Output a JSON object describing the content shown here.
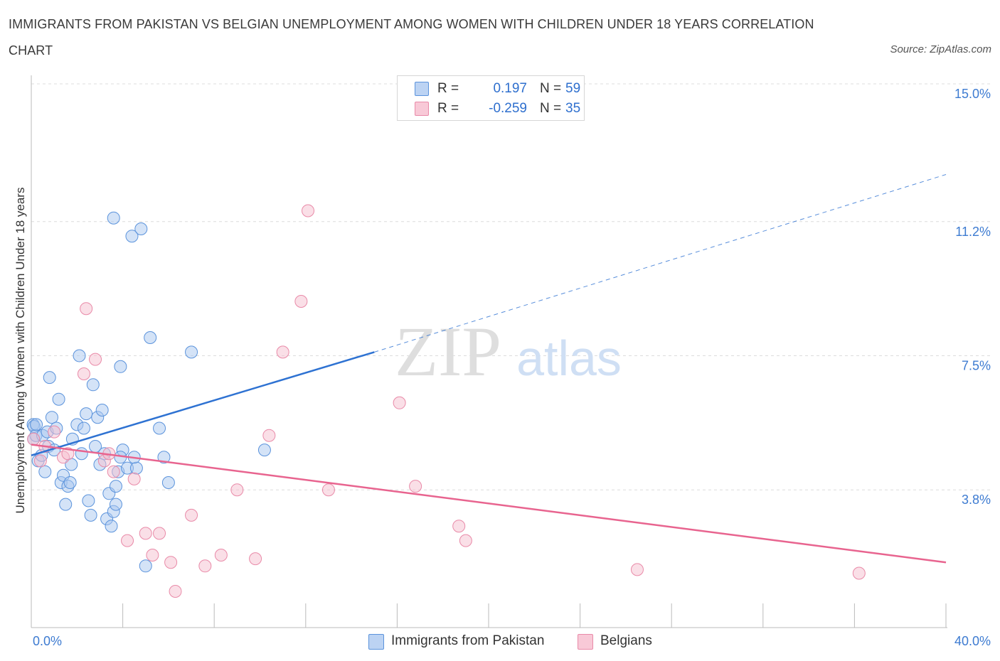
{
  "title": "IMMIGRANTS FROM PAKISTAN VS BELGIAN UNEMPLOYMENT AMONG WOMEN WITH CHILDREN UNDER 18 YEARS CORRELATION CHART",
  "source": "Source: ZipAtlas.com",
  "watermark": {
    "zip": "ZIP",
    "atlas": "atlas"
  },
  "colors": {
    "blue_fill": "#a9c8f0",
    "blue_stroke": "#5b93dc",
    "blue_line": "#2e72d2",
    "pink_fill": "#f6bfd0",
    "pink_stroke": "#e98aa8",
    "pink_line": "#e8648f",
    "grid": "#dcdcdc",
    "axis_text": "#3d7bd1"
  },
  "stats_legend": [
    {
      "r_label": "R =",
      "r_value": "0.197",
      "n_label": "N =",
      "n_value": "59"
    },
    {
      "r_label": "R =",
      "r_value": "-0.259",
      "n_label": "N =",
      "n_value": "35"
    }
  ],
  "bottom_legend": [
    "Immigrants from Pakistan",
    "Belgians"
  ],
  "chart_data": {
    "type": "scatter",
    "title": "IMMIGRANTS FROM PAKISTAN VS BELGIAN UNEMPLOYMENT AMONG WOMEN WITH CHILDREN UNDER 18 YEARS CORRELATION CHART",
    "xlabel": "",
    "ylabel": "Unemployment Among Women with Children Under 18 years",
    "xlim": [
      0,
      40
    ],
    "ylim": [
      0,
      15
    ],
    "x_tick_labels": [
      "0.0%",
      "40.0%"
    ],
    "y_ticks": [
      3.8,
      7.5,
      11.2,
      15.0
    ],
    "y_tick_labels": [
      "3.8%",
      "7.5%",
      "11.2%",
      "15.0%"
    ],
    "grid": "horizontal dashed",
    "legend_position": "top-center",
    "series": [
      {
        "name": "Immigrants from Pakistan",
        "r": 0.197,
        "n": 59,
        "trend": {
          "x0": 0,
          "y0": 4.75,
          "x1": 15,
          "y1": 7.6,
          "dashed_to_x": 40,
          "dashed_to_y": 12.5
        },
        "x": [
          0.08,
          0.1,
          0.12,
          0.2,
          0.22,
          0.3,
          0.45,
          0.5,
          0.6,
          0.7,
          0.75,
          0.8,
          0.9,
          1.0,
          1.1,
          1.2,
          1.3,
          1.4,
          1.5,
          1.6,
          1.7,
          1.75,
          1.8,
          2.0,
          2.1,
          2.2,
          2.3,
          2.4,
          2.5,
          2.6,
          2.7,
          2.8,
          2.9,
          3.0,
          3.1,
          3.2,
          3.3,
          3.4,
          3.5,
          3.6,
          3.7,
          3.8,
          3.9,
          4.0,
          4.2,
          4.4,
          4.6,
          4.8,
          5.0,
          5.2,
          5.6,
          5.8,
          6.0,
          3.7,
          3.6,
          4.5,
          3.9,
          7.0,
          10.2
        ],
        "y": [
          5.6,
          5.2,
          5.55,
          5.3,
          5.6,
          4.6,
          4.75,
          5.3,
          4.3,
          5.4,
          5.0,
          6.9,
          5.8,
          4.9,
          5.5,
          6.3,
          4.0,
          4.2,
          3.4,
          3.9,
          4.0,
          4.5,
          5.2,
          5.6,
          7.5,
          4.8,
          5.5,
          5.9,
          3.5,
          3.1,
          6.7,
          5.0,
          5.8,
          4.5,
          6.0,
          4.8,
          3.0,
          3.7,
          2.8,
          3.2,
          3.4,
          4.3,
          7.2,
          4.9,
          4.4,
          10.8,
          4.4,
          11.0,
          1.7,
          8.0,
          5.5,
          4.7,
          4.0,
          3.9,
          11.3,
          4.7,
          4.7,
          7.6,
          4.9
        ]
      },
      {
        "name": "Belgians",
        "r": -0.259,
        "n": 35,
        "trend": {
          "x0": 0,
          "y0": 5.05,
          "x1": 40,
          "y1": 1.8
        },
        "x": [
          0.1,
          0.4,
          0.6,
          1.0,
          1.4,
          1.6,
          2.3,
          2.4,
          2.8,
          3.2,
          3.4,
          3.6,
          4.2,
          4.5,
          5.0,
          5.3,
          5.6,
          6.1,
          6.3,
          7.0,
          7.6,
          8.3,
          9.0,
          9.8,
          10.4,
          11.0,
          11.8,
          12.1,
          13.0,
          16.1,
          16.8,
          18.7,
          19.0,
          26.5,
          36.2
        ],
        "y": [
          5.2,
          4.6,
          5.0,
          5.4,
          4.7,
          4.8,
          7.0,
          8.8,
          7.4,
          4.6,
          4.8,
          4.3,
          2.4,
          4.1,
          2.6,
          2.0,
          2.6,
          1.8,
          1.0,
          3.1,
          1.7,
          2.0,
          3.8,
          1.9,
          5.3,
          7.6,
          9.0,
          11.5,
          3.8,
          6.2,
          3.9,
          2.8,
          2.4,
          1.6,
          1.5
        ]
      }
    ]
  }
}
